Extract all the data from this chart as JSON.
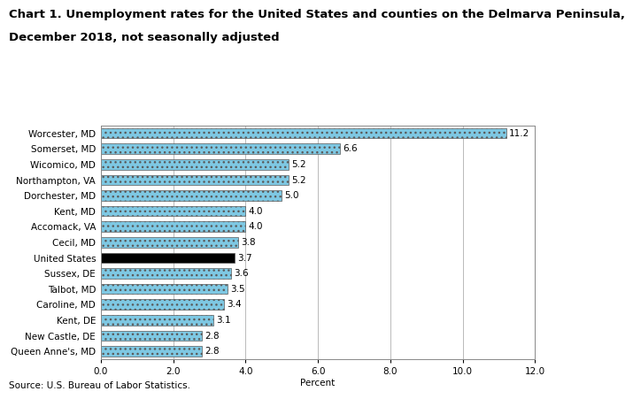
{
  "title_line1": "Chart 1. Unemployment rates for the United States and counties on the Delmarva Peninsula,",
  "title_line2": "December 2018, not seasonally adjusted",
  "categories": [
    "Worcester, MD",
    "Somerset, MD",
    "Wicomico, MD",
    "Northampton, VA",
    "Dorchester, MD",
    "Kent, MD",
    "Accomack, VA",
    "Cecil, MD",
    "United States",
    "Sussex, DE",
    "Talbot, MD",
    "Caroline, MD",
    "Kent, DE",
    "New Castle, DE",
    "Queen Anne's, MD"
  ],
  "values": [
    11.2,
    6.6,
    5.2,
    5.2,
    5.0,
    4.0,
    4.0,
    3.8,
    3.7,
    3.6,
    3.5,
    3.4,
    3.1,
    2.8,
    2.8
  ],
  "bar_colors": [
    "#7ec8e3",
    "#7ec8e3",
    "#7ec8e3",
    "#7ec8e3",
    "#7ec8e3",
    "#7ec8e3",
    "#7ec8e3",
    "#7ec8e3",
    "#000000",
    "#7ec8e3",
    "#7ec8e3",
    "#7ec8e3",
    "#7ec8e3",
    "#7ec8e3",
    "#7ec8e3"
  ],
  "us_index": 8,
  "labels": [
    "11.2",
    "6.6",
    "5.2",
    "5.2",
    "5.0",
    "4.0",
    "4.0",
    "3.8",
    "3.7",
    "3.6",
    "3.5",
    "3.4",
    "3.1",
    "2.8",
    "2.8"
  ],
  "xlabel": "Percent",
  "xlim": [
    0,
    12.0
  ],
  "xticks": [
    0.0,
    2.0,
    4.0,
    6.0,
    8.0,
    10.0,
    12.0
  ],
  "xtick_labels": [
    "0.0",
    "2.0",
    "4.0",
    "6.0",
    "8.0",
    "10.0",
    "12.0"
  ],
  "source": "Source: U.S. Bureau of Labor Statistics.",
  "bar_edge_color": "#5a5a5a",
  "background_color": "#ffffff",
  "grid_color": "#b0b0b0",
  "label_fontsize": 7.5,
  "tick_fontsize": 7.5,
  "title_fontsize": 9.5,
  "bar_height": 0.65
}
